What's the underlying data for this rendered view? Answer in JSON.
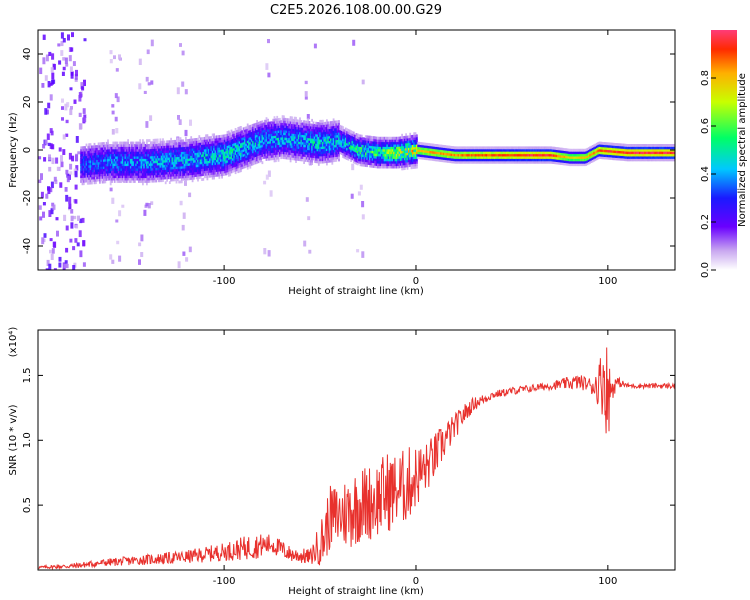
{
  "chart_data": [
    {
      "type": "heatmap",
      "title": "C2E5.2026.108.00.00.G29",
      "xlabel": "Height of straight line (km)",
      "ylabel": "Frequency (Hz)",
      "xlim": [
        -197,
        135
      ],
      "ylim": [
        -50,
        50
      ],
      "xticks": [
        -100,
        0,
        100
      ],
      "yticks": [
        -40,
        -20,
        0,
        20,
        40
      ],
      "colorbar": {
        "label": "Normalized spectral amplitude",
        "range": [
          0,
          1
        ],
        "ticks": [
          "0.0",
          "0.2",
          "0.4",
          "0.6",
          "0.8"
        ]
      },
      "ridge": {
        "x": [
          -175,
          -160,
          -140,
          -120,
          -100,
          -90,
          -80,
          -70,
          -60,
          -50,
          -40,
          -30,
          -20,
          -10,
          0,
          20,
          40,
          60,
          70,
          80,
          88,
          95,
          110,
          135
        ],
        "y": [
          -6,
          -5,
          -5,
          -4,
          -2,
          1,
          4,
          5,
          4,
          3,
          4,
          0,
          -1,
          -1,
          0,
          -2,
          -2,
          -2,
          -2,
          -3,
          -3,
          0,
          -1,
          -1
        ],
        "amplitude": [
          0.35,
          0.4,
          0.42,
          0.45,
          0.5,
          0.5,
          0.45,
          0.45,
          0.45,
          0.5,
          0.45,
          0.55,
          0.6,
          0.7,
          0.8,
          0.85,
          0.9,
          0.95,
          0.95,
          0.75,
          0.8,
          0.9,
          0.95,
          0.95
        ]
      }
    },
    {
      "type": "line",
      "title": "",
      "xlabel": "Height of straight line (km)",
      "ylabel": "SNR (10 * v/v)",
      "scale_label": "(x10⁴)",
      "xlim": [
        -197,
        135
      ],
      "ylim": [
        0,
        1.85
      ],
      "xticks": [
        -100,
        0,
        100
      ],
      "yticks": [
        0.5,
        1.0,
        1.5
      ],
      "series": [
        {
          "name": "SNR",
          "color": "#e8312d",
          "x": [
            -197,
            -180,
            -160,
            -140,
            -120,
            -100,
            -85,
            -75,
            -65,
            -55,
            -48,
            -45,
            -40,
            -35,
            -30,
            -25,
            -20,
            -15,
            -10,
            -5,
            0,
            5,
            10,
            15,
            20,
            25,
            30,
            40,
            50,
            60,
            70,
            80,
            85,
            90,
            95,
            98,
            100,
            102,
            105,
            110,
            120,
            135
          ],
          "values": [
            0.02,
            0.03,
            0.06,
            0.08,
            0.1,
            0.14,
            0.18,
            0.2,
            0.12,
            0.1,
            0.25,
            0.4,
            0.42,
            0.45,
            0.5,
            0.52,
            0.55,
            0.6,
            0.62,
            0.65,
            0.72,
            0.78,
            0.88,
            1.0,
            1.1,
            1.2,
            1.28,
            1.35,
            1.38,
            1.4,
            1.42,
            1.44,
            1.45,
            1.43,
            1.42,
            1.5,
            1.35,
            1.4,
            1.45,
            1.42,
            1.42,
            1.42
          ],
          "noise": [
            0.01,
            0.02,
            0.03,
            0.04,
            0.05,
            0.07,
            0.1,
            0.08,
            0.06,
            0.06,
            0.22,
            0.25,
            0.25,
            0.3,
            0.3,
            0.3,
            0.3,
            0.32,
            0.28,
            0.3,
            0.25,
            0.2,
            0.18,
            0.14,
            0.1,
            0.08,
            0.05,
            0.03,
            0.03,
            0.03,
            0.03,
            0.05,
            0.06,
            0.05,
            0.15,
            0.35,
            0.4,
            0.1,
            0.04,
            0.02,
            0.02,
            0.02
          ]
        }
      ]
    }
  ]
}
